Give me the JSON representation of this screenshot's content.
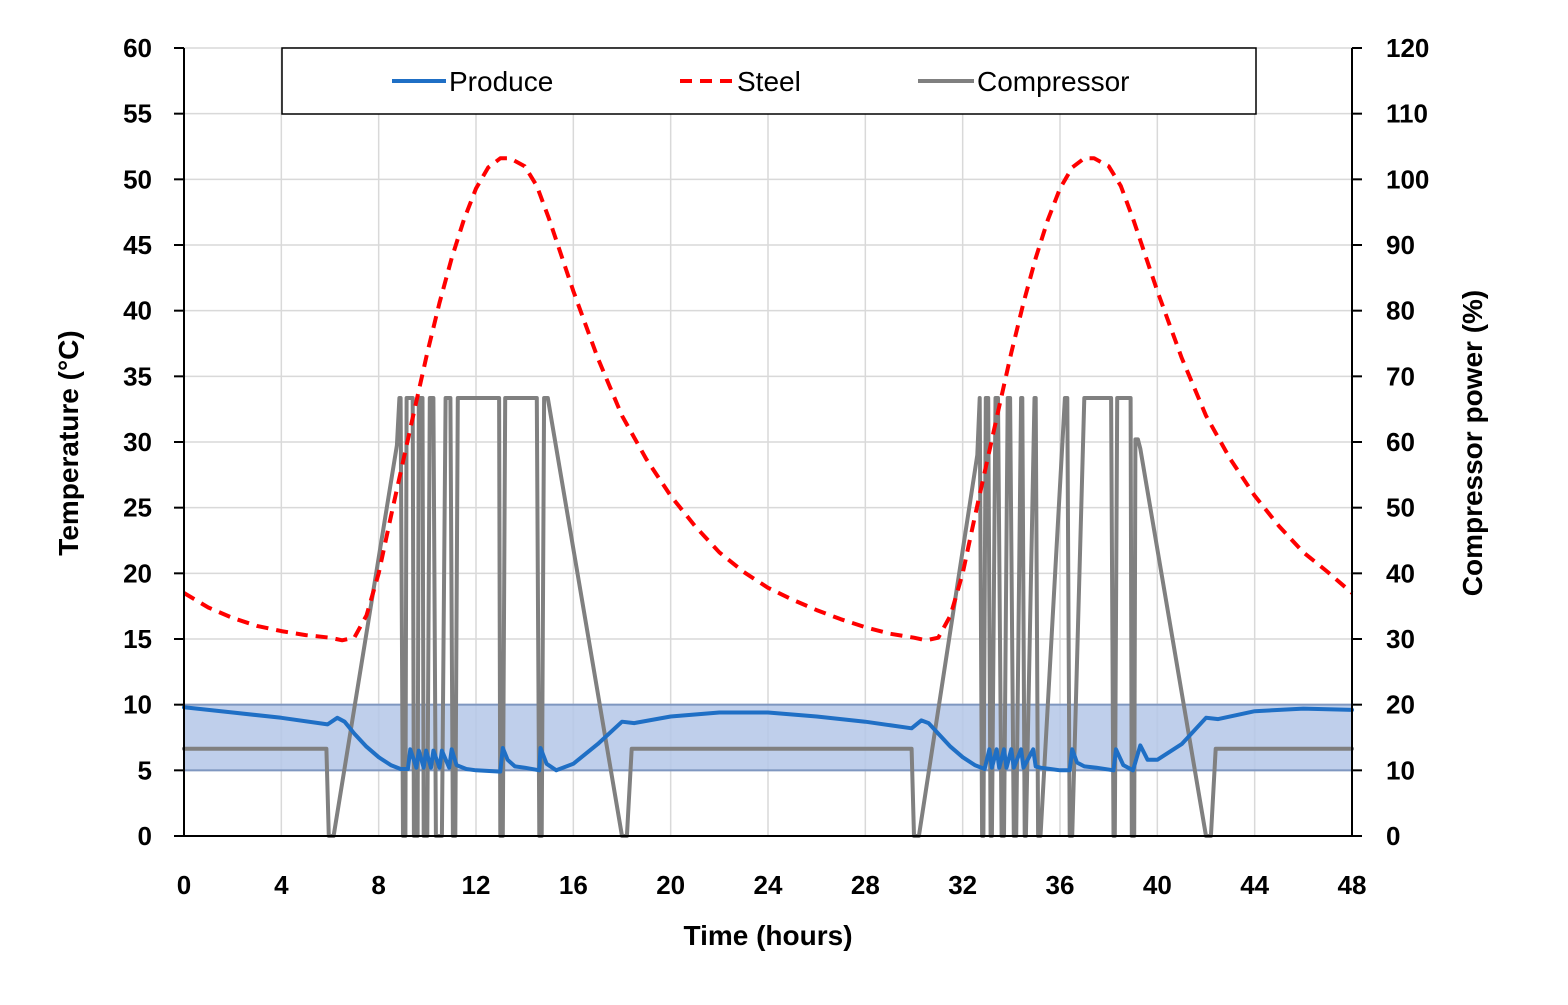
{
  "chart_data": {
    "type": "line",
    "xlabel": "Time (hours)",
    "ylabel": "Temperature (°C)",
    "y2label": "Compressor power (%)",
    "xlim": [
      0,
      48
    ],
    "ylim": [
      0,
      60
    ],
    "y2lim": [
      0,
      120
    ],
    "xticks": [
      0,
      4,
      8,
      12,
      16,
      20,
      24,
      28,
      32,
      36,
      40,
      44,
      48
    ],
    "yticks": [
      0,
      5,
      10,
      15,
      20,
      25,
      30,
      35,
      40,
      45,
      50,
      55,
      60
    ],
    "y2ticks": [
      0,
      10,
      20,
      30,
      40,
      50,
      60,
      70,
      80,
      90,
      100,
      110,
      120
    ],
    "grid": true,
    "legend_position": "top-center",
    "band": {
      "axis": "y",
      "from": 5,
      "to": 10,
      "color": "#b4c7e7"
    },
    "series": [
      {
        "name": "Produce",
        "axis": "left",
        "style": "solid",
        "color": "#1f6fc5",
        "x": [
          0,
          2,
          4,
          5.9,
          6.3,
          6.6,
          7.0,
          7.5,
          8.0,
          8.5,
          8.9,
          9.2,
          9.3,
          9.55,
          9.65,
          9.85,
          9.95,
          10.15,
          10.25,
          10.5,
          10.6,
          10.9,
          11.0,
          11.2,
          11.6,
          12,
          13,
          13.1,
          13.3,
          13.6,
          14,
          14.6,
          14.65,
          14.9,
          15.3,
          16,
          17,
          18,
          18.5,
          20,
          22,
          24,
          26,
          28,
          29.9,
          30.3,
          30.6,
          31,
          31.5,
          32,
          32.5,
          32.9,
          33.1,
          33.2,
          33.4,
          33.5,
          33.7,
          33.8,
          34.0,
          34.1,
          34.4,
          34.5,
          34.9,
          35.0,
          35.2,
          35.6,
          36,
          36.4,
          36.5,
          36.7,
          37.0,
          37.5,
          38.2,
          38.3,
          38.6,
          39.0,
          39.3,
          39.6,
          40,
          41,
          42,
          42.5,
          44,
          46,
          48
        ],
        "y": [
          9.8,
          9.4,
          9.0,
          8.5,
          9.0,
          8.7,
          7.8,
          6.8,
          6.0,
          5.4,
          5.1,
          5.1,
          6.6,
          5.2,
          6.5,
          5.2,
          6.5,
          5.2,
          6.5,
          5.2,
          6.5,
          5.2,
          6.6,
          5.4,
          5.1,
          5.0,
          4.9,
          6.7,
          5.8,
          5.3,
          5.2,
          5.0,
          6.7,
          5.5,
          5.0,
          5.5,
          7.0,
          8.7,
          8.6,
          9.1,
          9.4,
          9.4,
          9.1,
          8.7,
          8.2,
          8.8,
          8.6,
          7.8,
          6.8,
          6.0,
          5.4,
          5.1,
          6.6,
          5.2,
          6.6,
          5.2,
          6.6,
          5.2,
          6.6,
          5.2,
          6.6,
          5.2,
          6.6,
          5.3,
          5.2,
          5.1,
          5.0,
          5.0,
          6.6,
          5.6,
          5.3,
          5.2,
          5.0,
          6.6,
          5.4,
          5.0,
          6.9,
          5.8,
          5.8,
          7.0,
          9.0,
          8.9,
          9.5,
          9.7,
          9.6
        ]
      },
      {
        "name": "Steel",
        "axis": "left",
        "style": "dashed",
        "color": "#ff0000",
        "x": [
          0,
          1,
          2,
          3,
          4,
          5,
          6,
          6.5,
          7,
          7.5,
          8,
          8.5,
          9,
          9.5,
          10,
          10.5,
          11,
          11.5,
          12,
          12.5,
          13,
          13.4,
          14,
          14.5,
          15,
          16,
          17,
          18,
          19,
          20,
          21,
          22,
          23,
          24,
          25,
          26,
          27,
          28,
          29,
          30,
          30.5,
          31,
          31.5,
          32,
          32.5,
          33,
          33.5,
          34,
          34.5,
          35,
          35.5,
          36,
          36.5,
          37,
          37.4,
          38,
          38.5,
          39,
          40,
          41,
          42,
          43,
          44,
          45,
          46,
          47,
          48
        ],
        "y": [
          18.5,
          17.4,
          16.6,
          16.0,
          15.6,
          15.3,
          15.1,
          14.9,
          15.1,
          16.8,
          20.0,
          24.3,
          28.5,
          32.7,
          36.8,
          40.6,
          44.0,
          46.9,
          49.3,
          50.9,
          51.6,
          51.6,
          51.0,
          49.5,
          47.0,
          41.5,
          36.4,
          32.0,
          28.7,
          25.9,
          23.6,
          21.6,
          20.1,
          18.9,
          18.0,
          17.2,
          16.5,
          15.9,
          15.4,
          15.1,
          14.9,
          15.1,
          16.8,
          20.0,
          24.3,
          28.5,
          32.7,
          36.8,
          40.6,
          44.0,
          46.9,
          49.3,
          50.9,
          51.6,
          51.6,
          51.0,
          49.5,
          47.0,
          41.5,
          36.4,
          32.0,
          28.7,
          25.9,
          23.6,
          21.6,
          20.1,
          18.5
        ]
      },
      {
        "name": "Compressor",
        "axis": "right",
        "style": "solid",
        "color": "#808080",
        "x": [
          0,
          5.85,
          5.95,
          6.15,
          8.75,
          8.85,
          8.9,
          9.0,
          9.1,
          9.15,
          9.4,
          9.45,
          9.6,
          9.65,
          9.8,
          9.85,
          10.0,
          10.1,
          10.25,
          10.35,
          10.6,
          10.75,
          10.95,
          11.05,
          11.15,
          11.25,
          12.0,
          12.7,
          12.95,
          13.0,
          13.1,
          13.2,
          14.0,
          14.5,
          14.6,
          14.7,
          14.8,
          14.95,
          18.0,
          18.2,
          18.4,
          24,
          29.9,
          30.0,
          30.2,
          32.6,
          32.7,
          32.8,
          32.85,
          32.95,
          33.05,
          33.15,
          33.2,
          33.35,
          33.45,
          33.6,
          33.7,
          33.85,
          33.95,
          34.1,
          34.2,
          34.4,
          34.45,
          34.55,
          34.6,
          34.95,
          35.0,
          35.1,
          35.2,
          36.2,
          36.3,
          36.4,
          36.5,
          37.0,
          38.1,
          38.2,
          38.25,
          38.35,
          38.5,
          38.9,
          38.95,
          39.05,
          39.1,
          39.2,
          39.3,
          42.0,
          42.2,
          42.4,
          48
        ],
        "y": [
          13.3,
          13.3,
          0,
          0,
          59.5,
          66.7,
          66.7,
          0,
          0,
          66.7,
          66.7,
          0,
          0,
          66.7,
          66.7,
          0,
          0,
          66.7,
          66.7,
          0,
          0,
          66.7,
          66.7,
          0,
          0,
          66.7,
          66.7,
          66.7,
          66.7,
          0,
          0,
          66.7,
          66.7,
          66.7,
          0,
          0,
          66.7,
          66.7,
          0,
          0,
          13.3,
          13.3,
          13.3,
          0,
          0,
          58.0,
          66.7,
          0,
          0,
          66.7,
          66.7,
          0,
          0,
          66.7,
          66.7,
          0,
          0,
          66.7,
          66.7,
          0,
          0,
          66.7,
          66.7,
          0,
          0,
          66.7,
          66.7,
          0,
          0,
          66.7,
          66.7,
          0,
          0,
          66.7,
          66.7,
          0,
          0,
          66.7,
          66.7,
          66.7,
          0,
          0,
          60.4,
          60.4,
          59.0,
          0,
          0,
          13.3,
          13.3
        ]
      }
    ]
  }
}
